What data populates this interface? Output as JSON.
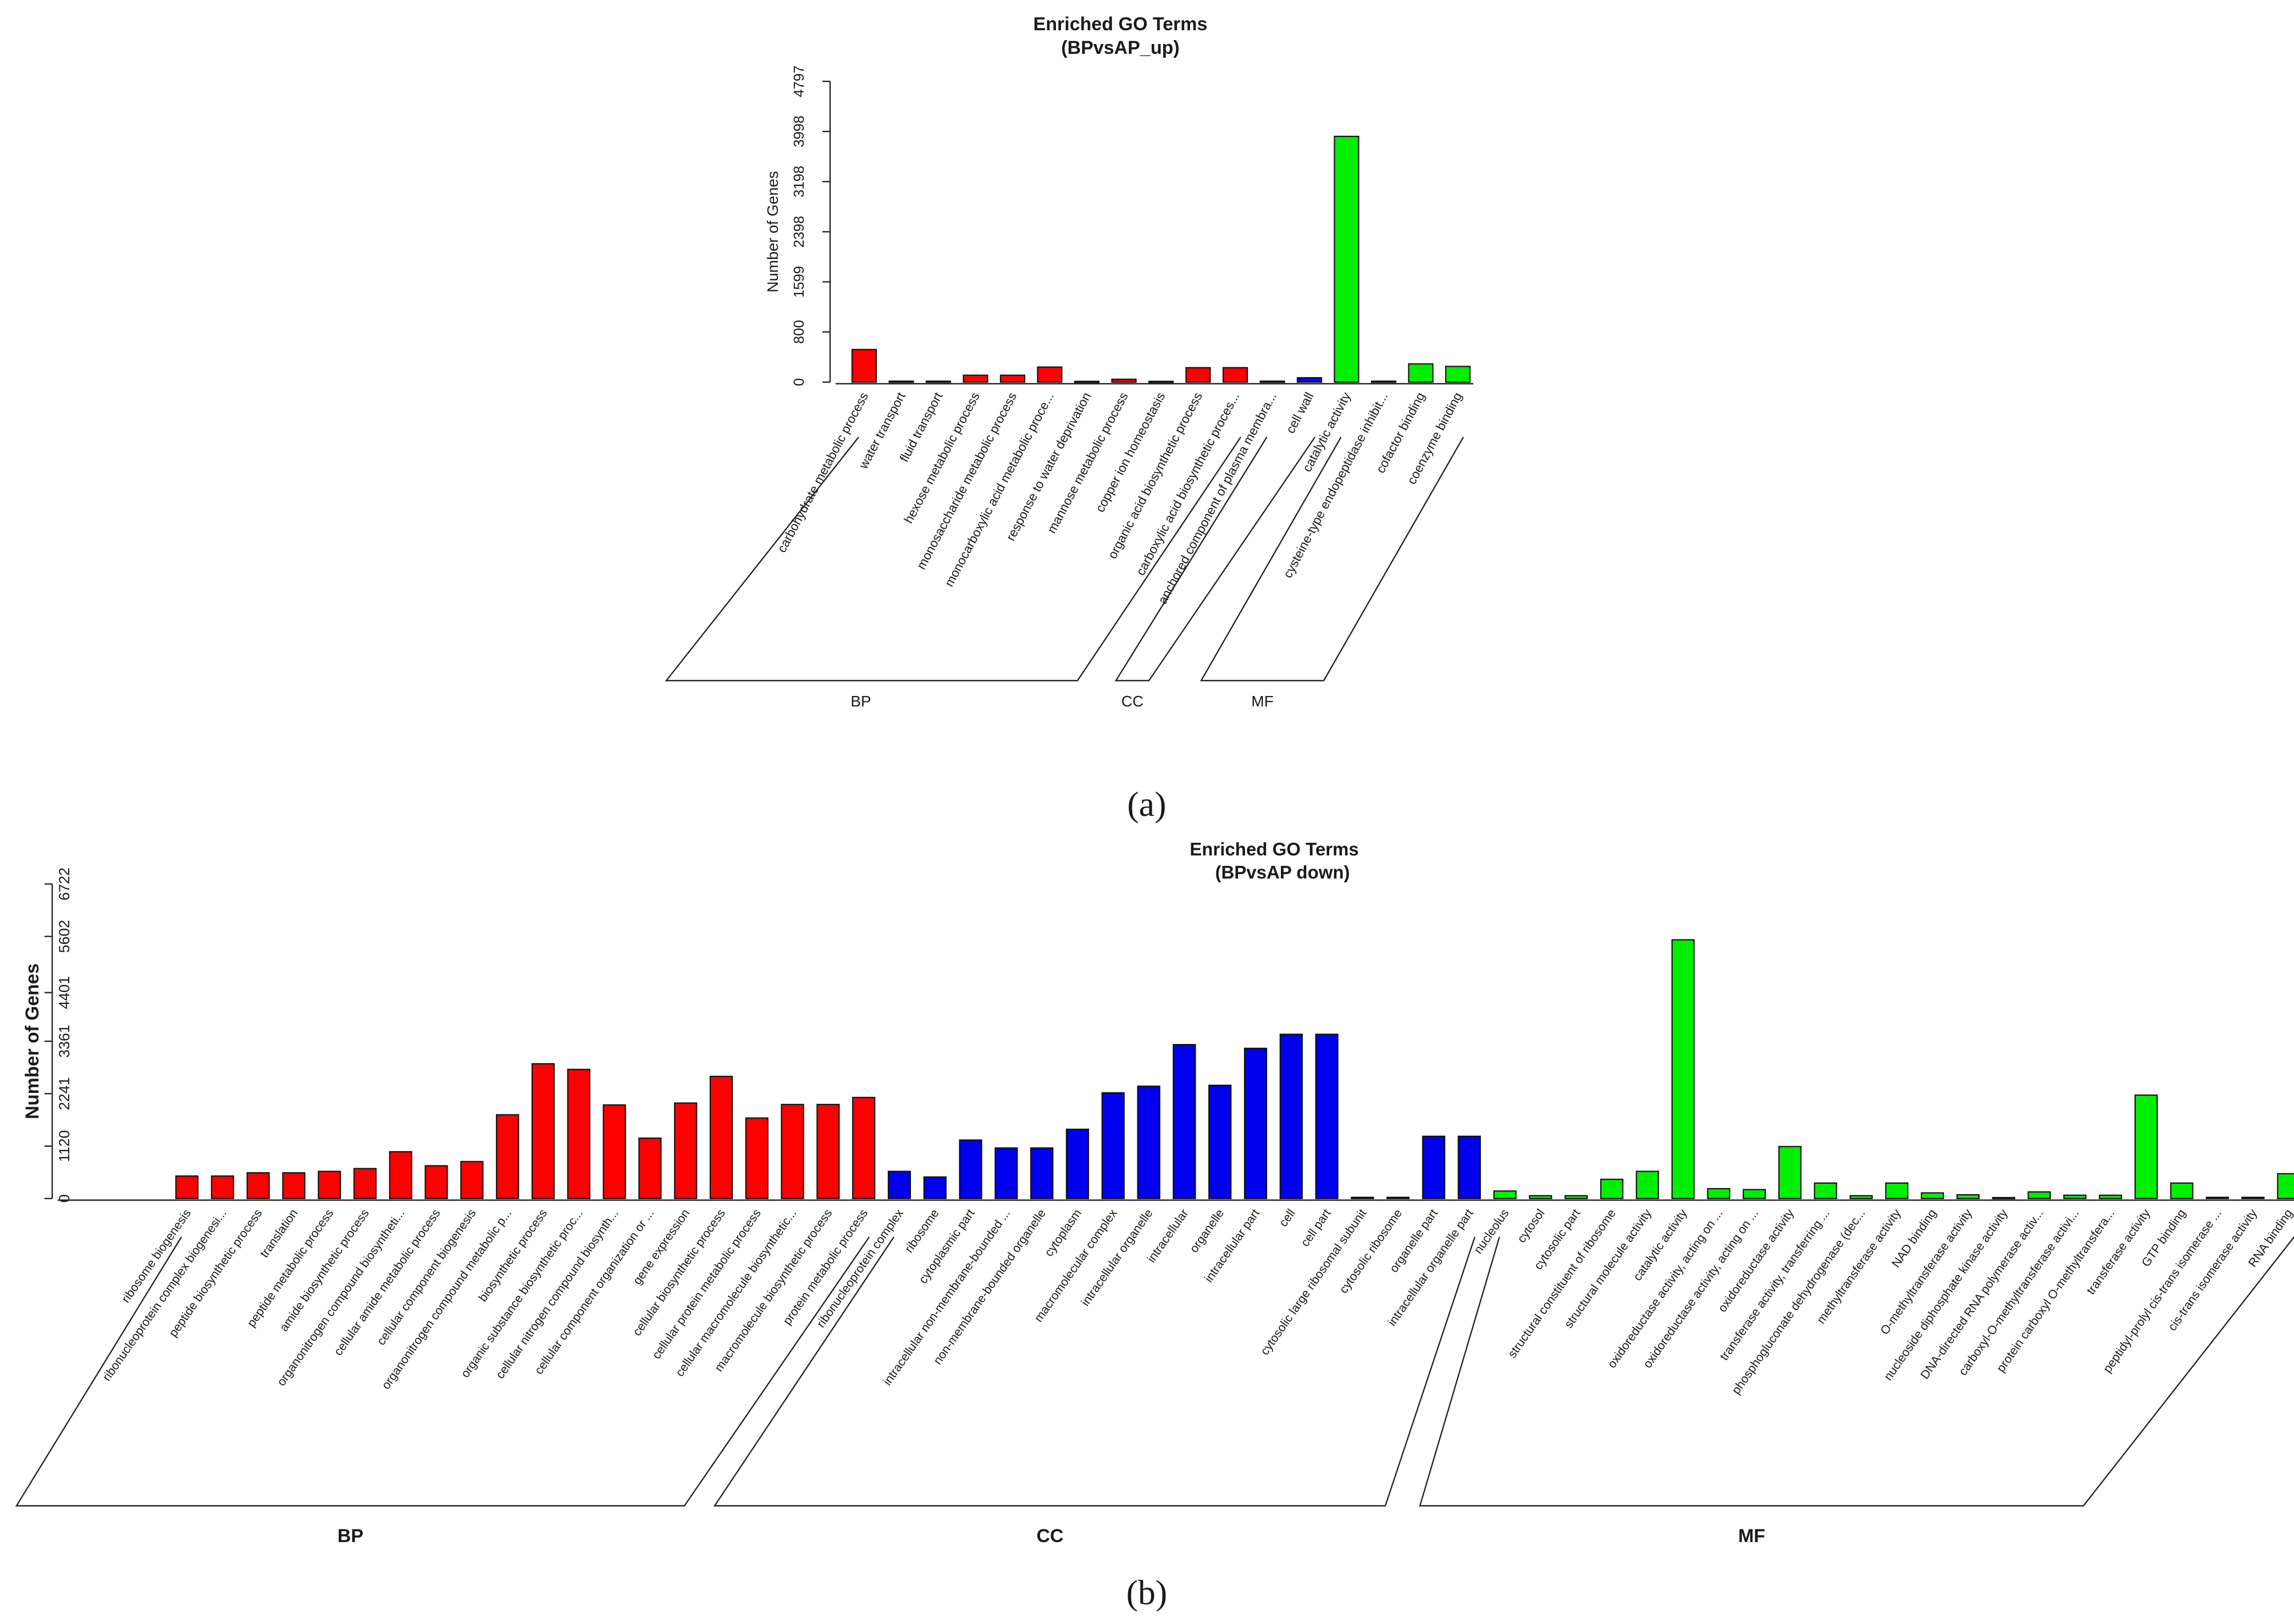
{
  "colors": {
    "BP": "#ff0000",
    "CC": "#0000ee",
    "MF": "#00ee00"
  },
  "panel_labels": [
    "(a)",
    "(b)"
  ],
  "chart_data": [
    {
      "type": "bar",
      "title": "Enriched GO Terms",
      "subtitle": "(BPvsAP_up)",
      "ylabel": "Number of Genes",
      "xlabel": "",
      "ylim": [
        0,
        4797
      ],
      "yticks": [
        0,
        800,
        1599,
        2398,
        3198,
        3998,
        4797
      ],
      "grid": false,
      "groups": [
        {
          "name": "BP",
          "color_key": "BP",
          "categories": [
            "carbohydrate metabolic process",
            "water transport",
            "fluid transport",
            "hexose metabolic process",
            "monosaccharide metabolic process",
            "monocarboxylic acid metabolic proce...",
            "response to water deprivation",
            "mannose metabolic process",
            "copper ion homeostasis",
            "organic acid biosynthetic process",
            "carboxylic acid biosynthetic proces..."
          ],
          "values": [
            520,
            15,
            15,
            110,
            110,
            240,
            12,
            45,
            12,
            230,
            230
          ]
        },
        {
          "name": "CC",
          "color_key": "CC",
          "categories": [
            "anchored component of plasma membra...",
            "cell wall"
          ],
          "values": [
            15,
            70
          ]
        },
        {
          "name": "MF",
          "color_key": "MF",
          "categories": [
            "catalytic activity",
            "cysteine-type endopeptidase inhibit...",
            "cofactor binding",
            "coenzyme binding"
          ],
          "values": [
            3920,
            15,
            290,
            250
          ]
        }
      ]
    },
    {
      "type": "bar",
      "title": "Enriched GO Terms",
      "subtitle": "(BPvsAP down)",
      "ylabel": "Number of Genes",
      "xlabel": "",
      "ylim": [
        0,
        6722
      ],
      "yticks": [
        0,
        1120,
        2241,
        3361,
        4401,
        5602,
        6722
      ],
      "grid": false,
      "groups": [
        {
          "name": "BP",
          "color_key": "BP",
          "categories": [
            "ribosome biogenesis",
            "ribonucleoprotein complex biogenesi...",
            "peptide biosynthetic process",
            "translation",
            "peptide metabolic process",
            "amide biosynthetic process",
            "organonitrogen compound biosyntheti...",
            "cellular amide metabolic process",
            "cellular component biogenesis",
            "organonitrogen compound metabolic p...",
            "biosynthetic process",
            "organic substance biosynthetic proc...",
            "cellular nitrogen compound biosynth...",
            "cellular component organization or ...",
            "gene expression",
            "cellular biosynthetic process",
            "cellular protein metabolic process",
            "cellular macromolecule biosynthetic...",
            "macromolecule biosynthetic process",
            "protein metabolic process"
          ],
          "values": [
            480,
            480,
            550,
            550,
            580,
            640,
            1000,
            700,
            790,
            1790,
            2880,
            2760,
            2000,
            1290,
            2040,
            2610,
            1720,
            2010,
            2010,
            2160
          ]
        },
        {
          "name": "CC",
          "color_key": "CC",
          "categories": [
            "ribonucleoprotein complex",
            "ribosome",
            "cytoplasmic part",
            "intracellular non-membrane-bounded ...",
            "non-membrane-bounded organelle",
            "cytoplasm",
            "macromolecular complex",
            "intracellular organelle",
            "intracellular",
            "organelle",
            "intracellular part",
            "cell",
            "cell part",
            "cytosolic large ribosomal subunit",
            "cytosolic ribosome",
            "organelle part",
            "intracellular organelle part"
          ],
          "values": [
            580,
            460,
            1250,
            1080,
            1080,
            1480,
            2260,
            2400,
            3290,
            2420,
            3210,
            3510,
            3510,
            25,
            25,
            1330,
            1330
          ]
        },
        {
          "name": "MF",
          "color_key": "MF",
          "categories": [
            "nucleolus",
            "cytosol",
            "cytosolic part",
            "structural constituent of ribosome",
            "structural molecule activity",
            "catalytic activity",
            "oxidoreductase activity, acting on ...",
            "oxidoreductase activity, acting on ...",
            "oxidoreductase activity",
            "transferase activity, transferring ...",
            "phosphogluconate dehydrogenase (dec...",
            "methyltransferase activity",
            "NAD binding",
            "O-methyltransferase activity",
            "nucleoside diphosphate kinase activity",
            "DNA-directed RNA polymerase activ...",
            "carboxyl-O-methyltransferase activi...",
            "protein carboxyl O-methyltransfera...",
            "transferase activity",
            "GTP binding",
            "peptidyl-prolyl cis-trans isomerase ...",
            "cis-trans isomerase activity",
            "RNA binding"
          ],
          "values": [
            160,
            60,
            60,
            410,
            580,
            5530,
            210,
            190,
            1110,
            330,
            60,
            330,
            120,
            80,
            20,
            140,
            70,
            70,
            2210,
            330,
            25,
            25,
            530
          ]
        }
      ]
    }
  ]
}
